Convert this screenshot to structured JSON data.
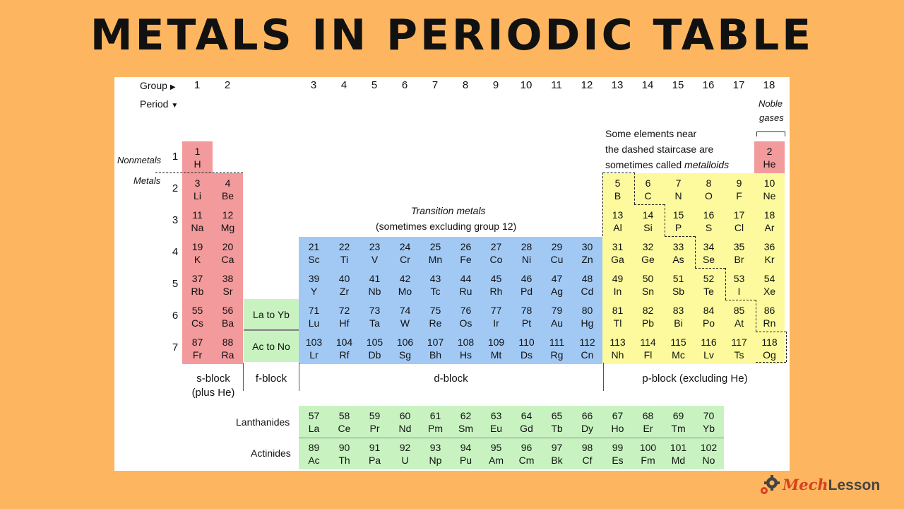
{
  "title": "METALS IN PERIODIC TABLE",
  "axes": {
    "group_label": "Group",
    "period_label": "Period",
    "groups": [
      "1",
      "2",
      "3",
      "4",
      "5",
      "6",
      "7",
      "8",
      "9",
      "10",
      "11",
      "12",
      "13",
      "14",
      "15",
      "16",
      "17",
      "18"
    ],
    "periods": [
      "1",
      "2",
      "3",
      "4",
      "5",
      "6",
      "7"
    ]
  },
  "labels": {
    "nonmetals": "Nonmetals",
    "metals": "Metals",
    "noble_line1": "Noble",
    "noble_line2": "gases",
    "metalloid_line1": "Some elements near",
    "metalloid_line2": "the dashed staircase are",
    "metalloid_line3_prefix": "sometimes called ",
    "metalloid_line3_em": "metalloids",
    "transition_line1": "Transition metals",
    "transition_line2": "(sometimes excluding group 12)",
    "la_to_yb": "La to Yb",
    "ac_to_no": "Ac to No",
    "lanthanides": "Lanthanides",
    "actinides": "Actinides"
  },
  "blocks": {
    "s_line1": "s-block",
    "s_line2": "(plus He)",
    "f": "f-block",
    "d": "d-block",
    "p": "p-block (excluding He)"
  },
  "elements": [
    {
      "n": "1",
      "sym": "H",
      "g": 1,
      "p": 1,
      "b": "s"
    },
    {
      "n": "2",
      "sym": "He",
      "g": 18,
      "p": 1,
      "b": "s"
    },
    {
      "n": "3",
      "sym": "Li",
      "g": 1,
      "p": 2,
      "b": "s"
    },
    {
      "n": "4",
      "sym": "Be",
      "g": 2,
      "p": 2,
      "b": "s"
    },
    {
      "n": "5",
      "sym": "B",
      "g": 13,
      "p": 2,
      "b": "p"
    },
    {
      "n": "6",
      "sym": "C",
      "g": 14,
      "p": 2,
      "b": "p"
    },
    {
      "n": "7",
      "sym": "N",
      "g": 15,
      "p": 2,
      "b": "p"
    },
    {
      "n": "8",
      "sym": "O",
      "g": 16,
      "p": 2,
      "b": "p"
    },
    {
      "n": "9",
      "sym": "F",
      "g": 17,
      "p": 2,
      "b": "p"
    },
    {
      "n": "10",
      "sym": "Ne",
      "g": 18,
      "p": 2,
      "b": "p"
    },
    {
      "n": "11",
      "sym": "Na",
      "g": 1,
      "p": 3,
      "b": "s"
    },
    {
      "n": "12",
      "sym": "Mg",
      "g": 2,
      "p": 3,
      "b": "s"
    },
    {
      "n": "13",
      "sym": "Al",
      "g": 13,
      "p": 3,
      "b": "p"
    },
    {
      "n": "14",
      "sym": "Si",
      "g": 14,
      "p": 3,
      "b": "p"
    },
    {
      "n": "15",
      "sym": "P",
      "g": 15,
      "p": 3,
      "b": "p"
    },
    {
      "n": "16",
      "sym": "S",
      "g": 16,
      "p": 3,
      "b": "p"
    },
    {
      "n": "17",
      "sym": "Cl",
      "g": 17,
      "p": 3,
      "b": "p"
    },
    {
      "n": "18",
      "sym": "Ar",
      "g": 18,
      "p": 3,
      "b": "p"
    },
    {
      "n": "19",
      "sym": "K",
      "g": 1,
      "p": 4,
      "b": "s"
    },
    {
      "n": "20",
      "sym": "Ca",
      "g": 2,
      "p": 4,
      "b": "s"
    },
    {
      "n": "21",
      "sym": "Sc",
      "g": 3,
      "p": 4,
      "b": "d"
    },
    {
      "n": "22",
      "sym": "Ti",
      "g": 4,
      "p": 4,
      "b": "d"
    },
    {
      "n": "23",
      "sym": "V",
      "g": 5,
      "p": 4,
      "b": "d"
    },
    {
      "n": "24",
      "sym": "Cr",
      "g": 6,
      "p": 4,
      "b": "d"
    },
    {
      "n": "25",
      "sym": "Mn",
      "g": 7,
      "p": 4,
      "b": "d"
    },
    {
      "n": "26",
      "sym": "Fe",
      "g": 8,
      "p": 4,
      "b": "d"
    },
    {
      "n": "27",
      "sym": "Co",
      "g": 9,
      "p": 4,
      "b": "d"
    },
    {
      "n": "28",
      "sym": "Ni",
      "g": 10,
      "p": 4,
      "b": "d"
    },
    {
      "n": "29",
      "sym": "Cu",
      "g": 11,
      "p": 4,
      "b": "d"
    },
    {
      "n": "30",
      "sym": "Zn",
      "g": 12,
      "p": 4,
      "b": "d"
    },
    {
      "n": "31",
      "sym": "Ga",
      "g": 13,
      "p": 4,
      "b": "p"
    },
    {
      "n": "32",
      "sym": "Ge",
      "g": 14,
      "p": 4,
      "b": "p"
    },
    {
      "n": "33",
      "sym": "As",
      "g": 15,
      "p": 4,
      "b": "p"
    },
    {
      "n": "34",
      "sym": "Se",
      "g": 16,
      "p": 4,
      "b": "p"
    },
    {
      "n": "35",
      "sym": "Br",
      "g": 17,
      "p": 4,
      "b": "p"
    },
    {
      "n": "36",
      "sym": "Kr",
      "g": 18,
      "p": 4,
      "b": "p"
    },
    {
      "n": "37",
      "sym": "Rb",
      "g": 1,
      "p": 5,
      "b": "s"
    },
    {
      "n": "38",
      "sym": "Sr",
      "g": 2,
      "p": 5,
      "b": "s"
    },
    {
      "n": "39",
      "sym": "Y",
      "g": 3,
      "p": 5,
      "b": "d"
    },
    {
      "n": "40",
      "sym": "Zr",
      "g": 4,
      "p": 5,
      "b": "d"
    },
    {
      "n": "41",
      "sym": "Nb",
      "g": 5,
      "p": 5,
      "b": "d"
    },
    {
      "n": "42",
      "sym": "Mo",
      "g": 6,
      "p": 5,
      "b": "d"
    },
    {
      "n": "43",
      "sym": "Tc",
      "g": 7,
      "p": 5,
      "b": "d"
    },
    {
      "n": "44",
      "sym": "Ru",
      "g": 8,
      "p": 5,
      "b": "d"
    },
    {
      "n": "45",
      "sym": "Rh",
      "g": 9,
      "p": 5,
      "b": "d"
    },
    {
      "n": "46",
      "sym": "Pd",
      "g": 10,
      "p": 5,
      "b": "d"
    },
    {
      "n": "47",
      "sym": "Ag",
      "g": 11,
      "p": 5,
      "b": "d"
    },
    {
      "n": "48",
      "sym": "Cd",
      "g": 12,
      "p": 5,
      "b": "d"
    },
    {
      "n": "49",
      "sym": "In",
      "g": 13,
      "p": 5,
      "b": "p"
    },
    {
      "n": "50",
      "sym": "Sn",
      "g": 14,
      "p": 5,
      "b": "p"
    },
    {
      "n": "51",
      "sym": "Sb",
      "g": 15,
      "p": 5,
      "b": "p"
    },
    {
      "n": "52",
      "sym": "Te",
      "g": 16,
      "p": 5,
      "b": "p"
    },
    {
      "n": "53",
      "sym": "I",
      "g": 17,
      "p": 5,
      "b": "p"
    },
    {
      "n": "54",
      "sym": "Xe",
      "g": 18,
      "p": 5,
      "b": "p"
    },
    {
      "n": "55",
      "sym": "Cs",
      "g": 1,
      "p": 6,
      "b": "s"
    },
    {
      "n": "56",
      "sym": "Ba",
      "g": 2,
      "p": 6,
      "b": "s"
    },
    {
      "n": "71",
      "sym": "Lu",
      "g": 3,
      "p": 6,
      "b": "d"
    },
    {
      "n": "72",
      "sym": "Hf",
      "g": 4,
      "p": 6,
      "b": "d"
    },
    {
      "n": "73",
      "sym": "Ta",
      "g": 5,
      "p": 6,
      "b": "d"
    },
    {
      "n": "74",
      "sym": "W",
      "g": 6,
      "p": 6,
      "b": "d"
    },
    {
      "n": "75",
      "sym": "Re",
      "g": 7,
      "p": 6,
      "b": "d"
    },
    {
      "n": "76",
      "sym": "Os",
      "g": 8,
      "p": 6,
      "b": "d"
    },
    {
      "n": "77",
      "sym": "Ir",
      "g": 9,
      "p": 6,
      "b": "d"
    },
    {
      "n": "78",
      "sym": "Pt",
      "g": 10,
      "p": 6,
      "b": "d"
    },
    {
      "n": "79",
      "sym": "Au",
      "g": 11,
      "p": 6,
      "b": "d"
    },
    {
      "n": "80",
      "sym": "Hg",
      "g": 12,
      "p": 6,
      "b": "d"
    },
    {
      "n": "81",
      "sym": "Tl",
      "g": 13,
      "p": 6,
      "b": "p"
    },
    {
      "n": "82",
      "sym": "Pb",
      "g": 14,
      "p": 6,
      "b": "p"
    },
    {
      "n": "83",
      "sym": "Bi",
      "g": 15,
      "p": 6,
      "b": "p"
    },
    {
      "n": "84",
      "sym": "Po",
      "g": 16,
      "p": 6,
      "b": "p"
    },
    {
      "n": "85",
      "sym": "At",
      "g": 17,
      "p": 6,
      "b": "p"
    },
    {
      "n": "86",
      "sym": "Rn",
      "g": 18,
      "p": 6,
      "b": "p"
    },
    {
      "n": "87",
      "sym": "Fr",
      "g": 1,
      "p": 7,
      "b": "s"
    },
    {
      "n": "88",
      "sym": "Ra",
      "g": 2,
      "p": 7,
      "b": "s"
    },
    {
      "n": "103",
      "sym": "Lr",
      "g": 3,
      "p": 7,
      "b": "d"
    },
    {
      "n": "104",
      "sym": "Rf",
      "g": 4,
      "p": 7,
      "b": "d"
    },
    {
      "n": "105",
      "sym": "Db",
      "g": 5,
      "p": 7,
      "b": "d"
    },
    {
      "n": "106",
      "sym": "Sg",
      "g": 6,
      "p": 7,
      "b": "d"
    },
    {
      "n": "107",
      "sym": "Bh",
      "g": 7,
      "p": 7,
      "b": "d"
    },
    {
      "n": "108",
      "sym": "Hs",
      "g": 8,
      "p": 7,
      "b": "d"
    },
    {
      "n": "109",
      "sym": "Mt",
      "g": 9,
      "p": 7,
      "b": "d"
    },
    {
      "n": "110",
      "sym": "Ds",
      "g": 10,
      "p": 7,
      "b": "d"
    },
    {
      "n": "111",
      "sym": "Rg",
      "g": 11,
      "p": 7,
      "b": "d"
    },
    {
      "n": "112",
      "sym": "Cn",
      "g": 12,
      "p": 7,
      "b": "d"
    },
    {
      "n": "113",
      "sym": "Nh",
      "g": 13,
      "p": 7,
      "b": "p"
    },
    {
      "n": "114",
      "sym": "Fl",
      "g": 14,
      "p": 7,
      "b": "p"
    },
    {
      "n": "115",
      "sym": "Mc",
      "g": 15,
      "p": 7,
      "b": "p"
    },
    {
      "n": "116",
      "sym": "Lv",
      "g": 16,
      "p": 7,
      "b": "p"
    },
    {
      "n": "117",
      "sym": "Ts",
      "g": 17,
      "p": 7,
      "b": "p"
    },
    {
      "n": "118",
      "sym": "Og",
      "g": 18,
      "p": 7,
      "b": "p"
    }
  ],
  "lanthanides": [
    {
      "n": "57",
      "sym": "La"
    },
    {
      "n": "58",
      "sym": "Ce"
    },
    {
      "n": "59",
      "sym": "Pr"
    },
    {
      "n": "60",
      "sym": "Nd"
    },
    {
      "n": "61",
      "sym": "Pm"
    },
    {
      "n": "62",
      "sym": "Sm"
    },
    {
      "n": "63",
      "sym": "Eu"
    },
    {
      "n": "64",
      "sym": "Gd"
    },
    {
      "n": "65",
      "sym": "Tb"
    },
    {
      "n": "66",
      "sym": "Dy"
    },
    {
      "n": "67",
      "sym": "Ho"
    },
    {
      "n": "68",
      "sym": "Er"
    },
    {
      "n": "69",
      "sym": "Tm"
    },
    {
      "n": "70",
      "sym": "Yb"
    }
  ],
  "actinides": [
    {
      "n": "89",
      "sym": "Ac"
    },
    {
      "n": "90",
      "sym": "Th"
    },
    {
      "n": "91",
      "sym": "Pa"
    },
    {
      "n": "92",
      "sym": "U"
    },
    {
      "n": "93",
      "sym": "Np"
    },
    {
      "n": "94",
      "sym": "Pu"
    },
    {
      "n": "95",
      "sym": "Am"
    },
    {
      "n": "96",
      "sym": "Cm"
    },
    {
      "n": "97",
      "sym": "Bk"
    },
    {
      "n": "98",
      "sym": "Cf"
    },
    {
      "n": "99",
      "sym": "Es"
    },
    {
      "n": "100",
      "sym": "Fm"
    },
    {
      "n": "101",
      "sym": "Md"
    },
    {
      "n": "102",
      "sym": "No"
    }
  ],
  "colors": {
    "background": "#FDB65F",
    "s_block": "#F29A9C",
    "d_block": "#A2C9F4",
    "p_block": "#FCFA9C",
    "f_block": "#C8F3C1"
  },
  "logo": {
    "brand_first": "Mech",
    "brand_second": "Lesson",
    "icon": "gear-icon"
  }
}
